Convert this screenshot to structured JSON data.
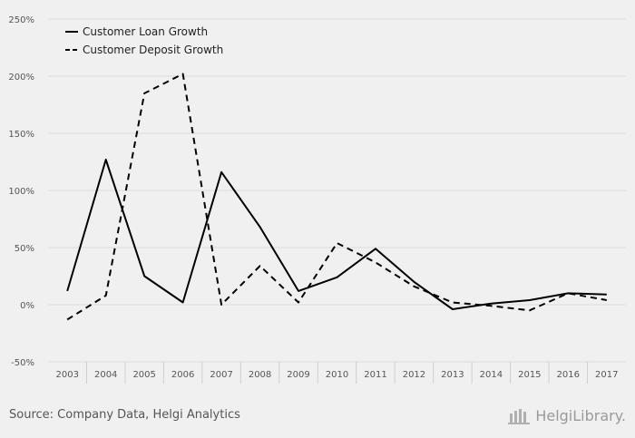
{
  "chart_data": {
    "type": "line",
    "categories": [
      "2003",
      "2004",
      "2005",
      "2006",
      "2007",
      "2008",
      "2009",
      "2010",
      "2011",
      "2012",
      "2013",
      "2014",
      "2015",
      "2016",
      "2017"
    ],
    "series": [
      {
        "name": "Customer Loan Growth",
        "style": "solid",
        "color": "#000000",
        "values": [
          12,
          127,
          25,
          2,
          116,
          68,
          12,
          24,
          49,
          20,
          -4,
          1,
          4,
          10,
          9
        ]
      },
      {
        "name": "Customer Deposit Growth",
        "style": "dashed",
        "color": "#000000",
        "values": [
          -13,
          8,
          185,
          202,
          0,
          34,
          2,
          54,
          37,
          16,
          2,
          -1,
          -5,
          10,
          4
        ]
      }
    ],
    "yticks": [
      -50,
      0,
      50,
      100,
      150,
      200,
      250
    ],
    "ytick_labels": [
      "-50%",
      "0%",
      "50%",
      "100%",
      "150%",
      "200%",
      "250%"
    ],
    "ylim": [
      -50,
      250
    ],
    "grid": "horizontal",
    "legend": "top-left"
  },
  "footer": {
    "source": "Source: Company Data, Helgi Analytics",
    "brand": "HelgiLibrary."
  }
}
